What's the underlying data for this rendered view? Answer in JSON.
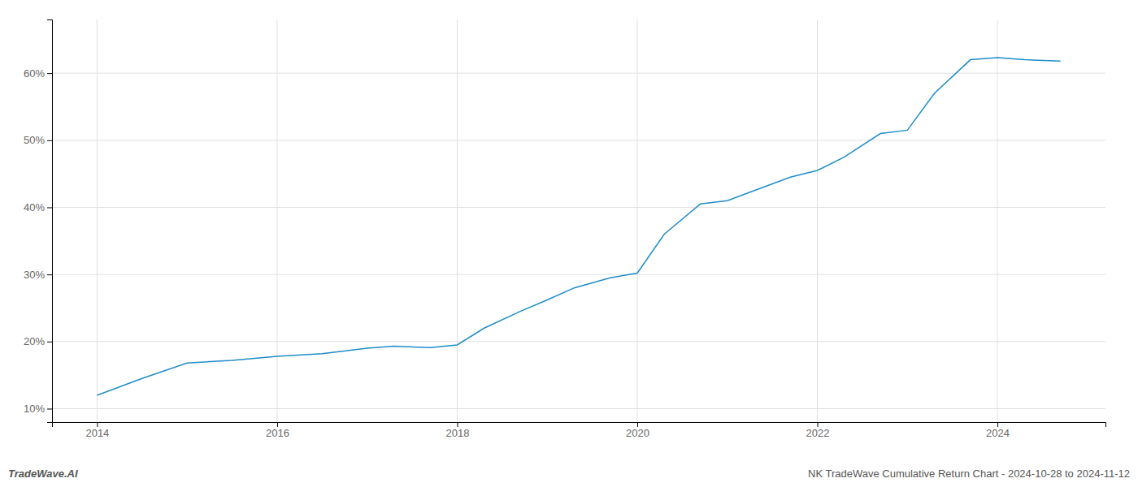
{
  "chart_data": {
    "type": "line",
    "x": [
      2014.0,
      2014.5,
      2015.0,
      2015.5,
      2016.0,
      2016.5,
      2017.0,
      2017.3,
      2017.7,
      2018.0,
      2018.3,
      2018.7,
      2019.0,
      2019.3,
      2019.7,
      2020.0,
      2020.3,
      2020.7,
      2021.0,
      2021.3,
      2021.7,
      2022.0,
      2022.3,
      2022.7,
      2023.0,
      2023.3,
      2023.7,
      2024.0,
      2024.3,
      2024.7
    ],
    "values": [
      12.0,
      14.5,
      16.8,
      17.2,
      17.8,
      18.2,
      19.0,
      19.3,
      19.1,
      19.5,
      22.0,
      24.5,
      26.2,
      28.0,
      29.5,
      30.2,
      36.0,
      40.5,
      41.0,
      42.5,
      44.5,
      45.5,
      47.5,
      51.0,
      51.5,
      57.0,
      62.0,
      62.3,
      62.0,
      61.8
    ],
    "color": "#1f8dc8",
    "xlim": [
      2013.5,
      2025.2
    ],
    "ylim": [
      8,
      68
    ],
    "xticks": [
      2014,
      2016,
      2018,
      2020,
      2022,
      2024
    ],
    "yticks": [
      {
        "value": 10,
        "label": "10%"
      },
      {
        "value": 20,
        "label": "20%"
      },
      {
        "value": 30,
        "label": "30%"
      },
      {
        "value": 40,
        "label": "40%"
      },
      {
        "value": 50,
        "label": "50%"
      },
      {
        "value": 60,
        "label": "60%"
      }
    ],
    "grid": true,
    "annotations": [
      "TradeWave.AI",
      "NK TradeWave Cumulative Return Chart - 2024-10-28 to 2024-11-12"
    ]
  }
}
